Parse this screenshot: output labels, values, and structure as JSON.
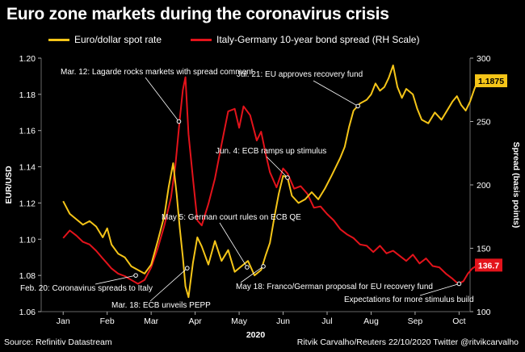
{
  "chart_data": {
    "type": "line",
    "title": "Euro zone markets during the coronavirus crisis",
    "xlabel": "2020",
    "x_categories": [
      "Jan",
      "Feb",
      "Mar",
      "Apr",
      "May",
      "Jun",
      "Jul",
      "Aug",
      "Sep",
      "Oct"
    ],
    "left_axis": {
      "label": "EUR/USD",
      "ylim": [
        1.06,
        1.2
      ],
      "ticks": [
        "1.06",
        "1.08",
        "1.10",
        "1.12",
        "1.14",
        "1.16",
        "1.18",
        "1.20"
      ]
    },
    "right_axis": {
      "label": "Spread (basis points)",
      "ylim": [
        100,
        300
      ],
      "ticks": [
        "100",
        "150",
        "200",
        "250",
        "300"
      ]
    },
    "series": [
      {
        "name": "Euro/dollar spot rate",
        "axis": "left",
        "color": "#f5c518",
        "end_label": "1.1875",
        "points": [
          [
            0.0,
            1.121
          ],
          [
            0.15,
            1.114
          ],
          [
            0.3,
            1.111
          ],
          [
            0.45,
            1.108
          ],
          [
            0.6,
            1.11
          ],
          [
            0.75,
            1.107
          ],
          [
            0.9,
            1.101
          ],
          [
            1.0,
            1.106
          ],
          [
            1.1,
            1.097
          ],
          [
            1.25,
            1.092
          ],
          [
            1.4,
            1.09
          ],
          [
            1.55,
            1.085
          ],
          [
            1.7,
            1.083
          ],
          [
            1.85,
            1.081
          ],
          [
            2.0,
            1.086
          ],
          [
            2.15,
            1.099
          ],
          [
            2.3,
            1.113
          ],
          [
            2.4,
            1.129
          ],
          [
            2.5,
            1.142
          ],
          [
            2.58,
            1.125
          ],
          [
            2.65,
            1.106
          ],
          [
            2.72,
            1.09
          ],
          [
            2.78,
            1.074
          ],
          [
            2.85,
            1.068
          ],
          [
            2.95,
            1.087
          ],
          [
            3.05,
            1.101
          ],
          [
            3.15,
            1.096
          ],
          [
            3.3,
            1.086
          ],
          [
            3.45,
            1.099
          ],
          [
            3.6,
            1.088
          ],
          [
            3.75,
            1.094
          ],
          [
            3.9,
            1.082
          ],
          [
            4.05,
            1.085
          ],
          [
            4.2,
            1.088
          ],
          [
            4.35,
            1.08
          ],
          [
            4.5,
            1.083
          ],
          [
            4.6,
            1.091
          ],
          [
            4.7,
            1.098
          ],
          [
            4.8,
            1.112
          ],
          [
            4.9,
            1.125
          ],
          [
            5.0,
            1.135
          ],
          [
            5.1,
            1.134
          ],
          [
            5.2,
            1.124
          ],
          [
            5.35,
            1.12
          ],
          [
            5.5,
            1.122
          ],
          [
            5.65,
            1.126
          ],
          [
            5.8,
            1.122
          ],
          [
            5.95,
            1.128
          ],
          [
            6.1,
            1.135
          ],
          [
            6.2,
            1.14
          ],
          [
            6.3,
            1.145
          ],
          [
            6.4,
            1.151
          ],
          [
            6.5,
            1.162
          ],
          [
            6.6,
            1.171
          ],
          [
            6.75,
            1.175
          ],
          [
            6.9,
            1.177
          ],
          [
            7.0,
            1.18
          ],
          [
            7.1,
            1.186
          ],
          [
            7.2,
            1.182
          ],
          [
            7.3,
            1.184
          ],
          [
            7.4,
            1.189
          ],
          [
            7.5,
            1.196
          ],
          [
            7.6,
            1.184
          ],
          [
            7.7,
            1.178
          ],
          [
            7.8,
            1.183
          ],
          [
            7.95,
            1.18
          ],
          [
            8.05,
            1.172
          ],
          [
            8.15,
            1.166
          ],
          [
            8.3,
            1.164
          ],
          [
            8.45,
            1.17
          ],
          [
            8.6,
            1.166
          ],
          [
            8.75,
            1.172
          ],
          [
            8.85,
            1.176
          ],
          [
            8.95,
            1.179
          ],
          [
            9.05,
            1.174
          ],
          [
            9.15,
            1.171
          ],
          [
            9.25,
            1.176
          ],
          [
            9.35,
            1.183
          ],
          [
            9.42,
            1.1875
          ]
        ]
      },
      {
        "name": "Italy-Germany 10-year bond spread (RH Scale)",
        "axis": "right",
        "color": "#e3131b",
        "end_label": "136.7",
        "points": [
          [
            0.0,
            158
          ],
          [
            0.15,
            164
          ],
          [
            0.3,
            160
          ],
          [
            0.45,
            155
          ],
          [
            0.6,
            153
          ],
          [
            0.75,
            148
          ],
          [
            0.9,
            142
          ],
          [
            1.0,
            138
          ],
          [
            1.1,
            134
          ],
          [
            1.25,
            130
          ],
          [
            1.4,
            128
          ],
          [
            1.55,
            125
          ],
          [
            1.7,
            122
          ],
          [
            1.85,
            125
          ],
          [
            2.0,
            135
          ],
          [
            2.15,
            150
          ],
          [
            2.3,
            168
          ],
          [
            2.45,
            190
          ],
          [
            2.55,
            215
          ],
          [
            2.65,
            252
          ],
          [
            2.72,
            275
          ],
          [
            2.78,
            285
          ],
          [
            2.85,
            240
          ],
          [
            2.95,
            205
          ],
          [
            3.05,
            172
          ],
          [
            3.15,
            168
          ],
          [
            3.3,
            185
          ],
          [
            3.45,
            205
          ],
          [
            3.6,
            232
          ],
          [
            3.75,
            258
          ],
          [
            3.9,
            260
          ],
          [
            4.0,
            245
          ],
          [
            4.1,
            262
          ],
          [
            4.25,
            255
          ],
          [
            4.4,
            235
          ],
          [
            4.5,
            242
          ],
          [
            4.6,
            225
          ],
          [
            4.7,
            210
          ],
          [
            4.85,
            198
          ],
          [
            5.0,
            213
          ],
          [
            5.1,
            209
          ],
          [
            5.25,
            197
          ],
          [
            5.4,
            199
          ],
          [
            5.55,
            193
          ],
          [
            5.7,
            182
          ],
          [
            5.85,
            183
          ],
          [
            6.0,
            177
          ],
          [
            6.15,
            172
          ],
          [
            6.3,
            165
          ],
          [
            6.45,
            161
          ],
          [
            6.6,
            158
          ],
          [
            6.75,
            153
          ],
          [
            6.9,
            152
          ],
          [
            7.05,
            147
          ],
          [
            7.2,
            152
          ],
          [
            7.35,
            146
          ],
          [
            7.5,
            148
          ],
          [
            7.65,
            144
          ],
          [
            7.8,
            140
          ],
          [
            7.95,
            145
          ],
          [
            8.1,
            138
          ],
          [
            8.25,
            142
          ],
          [
            8.4,
            136
          ],
          [
            8.55,
            135
          ],
          [
            8.7,
            130
          ],
          [
            8.85,
            126
          ],
          [
            8.98,
            122
          ],
          [
            9.1,
            124
          ],
          [
            9.2,
            130
          ],
          [
            9.3,
            134
          ],
          [
            9.42,
            136.7
          ]
        ]
      }
    ],
    "annotations": [
      {
        "text": "Mar. 12: Lagarde rocks markets with spread comment",
        "series": 1,
        "x": 2.63,
        "y": 250
      },
      {
        "text": "Jul. 21: EU approves recovery fund",
        "series": 0,
        "x": 6.7,
        "y": 1.1735
      },
      {
        "text": "Jun. 4: ECB ramps up stimulus",
        "series": 0,
        "x": 5.1,
        "y": 1.134
      },
      {
        "text": "May 5: German court rules on ECB QE",
        "series": 0,
        "x": 4.18,
        "y": 1.0845
      },
      {
        "text": "Feb. 20: Coronavirus spreads to Italy",
        "series": 0,
        "x": 1.65,
        "y": 1.08
      },
      {
        "text": "Mar. 18: ECB unveils PEPP",
        "series": 0,
        "x": 2.82,
        "y": 1.084
      },
      {
        "text": "May 18: Franco/German proposal for EU recovery fund",
        "series": 0,
        "x": 4.55,
        "y": 1.085
      },
      {
        "text": "Expectations for more stimulus build",
        "series": 1,
        "x": 9.0,
        "y": 122
      }
    ]
  },
  "footer": {
    "source": "Source: Refinitiv Datastream",
    "credit": "Ritvik Carvalho/Reuters 22/10/2020 Twitter @ritvikcarvalho"
  }
}
